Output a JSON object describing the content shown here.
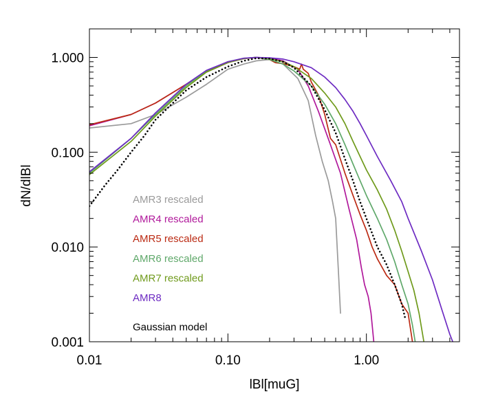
{
  "chart_data": {
    "type": "line",
    "title": "",
    "xlabel": "lBl[muG]",
    "ylabel": "dN/dlBl",
    "xscale": "log",
    "yscale": "log",
    "xlim": [
      0.01,
      4.7
    ],
    "ylim": [
      0.001,
      2.0
    ],
    "xticks": [
      {
        "value": 0.01,
        "label": "0.01"
      },
      {
        "value": 0.1,
        "label": "0.10"
      },
      {
        "value": 1.0,
        "label": "1.00"
      }
    ],
    "yticks": [
      {
        "value": 0.001,
        "label": "0.001"
      },
      {
        "value": 0.01,
        "label": "0.010"
      },
      {
        "value": 0.1,
        "label": "0.100"
      },
      {
        "value": 1.0,
        "label": "1.000"
      }
    ],
    "legend_position": "center-left",
    "series": [
      {
        "name": "AMR3 rescaled",
        "color": "#9a9a9a",
        "style": "solid",
        "points": [
          [
            0.01,
            0.18
          ],
          [
            0.02,
            0.2
          ],
          [
            0.03,
            0.25
          ],
          [
            0.05,
            0.38
          ],
          [
            0.07,
            0.52
          ],
          [
            0.1,
            0.75
          ],
          [
            0.13,
            0.85
          ],
          [
            0.16,
            0.92
          ],
          [
            0.2,
            0.95
          ],
          [
            0.25,
            0.85
          ],
          [
            0.32,
            0.6
          ],
          [
            0.38,
            0.35
          ],
          [
            0.43,
            0.15
          ],
          [
            0.48,
            0.08
          ],
          [
            0.53,
            0.05
          ],
          [
            0.57,
            0.03
          ],
          [
            0.6,
            0.02
          ],
          [
            0.63,
            0.005
          ],
          [
            0.65,
            0.002
          ]
        ]
      },
      {
        "name": "AMR4 rescaled",
        "color": "#b0189b",
        "style": "solid",
        "points": [
          [
            0.01,
            0.19
          ],
          [
            0.02,
            0.25
          ],
          [
            0.03,
            0.33
          ],
          [
            0.05,
            0.52
          ],
          [
            0.07,
            0.7
          ],
          [
            0.1,
            0.88
          ],
          [
            0.13,
            0.97
          ],
          [
            0.16,
            1.0
          ],
          [
            0.2,
            0.98
          ],
          [
            0.25,
            0.92
          ],
          [
            0.32,
            0.75
          ],
          [
            0.38,
            0.5
          ],
          [
            0.45,
            0.27
          ],
          [
            0.55,
            0.12
          ],
          [
            0.65,
            0.06
          ],
          [
            0.75,
            0.025
          ],
          [
            0.85,
            0.012
          ],
          [
            0.92,
            0.006
          ],
          [
            0.97,
            0.004
          ],
          [
            1.03,
            0.003
          ],
          [
            1.08,
            0.002
          ],
          [
            1.13,
            0.001
          ]
        ]
      },
      {
        "name": "AMR5 rescaled",
        "color": "#bb2a13",
        "style": "solid",
        "points": [
          [
            0.01,
            0.195
          ],
          [
            0.02,
            0.25
          ],
          [
            0.03,
            0.33
          ],
          [
            0.05,
            0.52
          ],
          [
            0.07,
            0.72
          ],
          [
            0.1,
            0.9
          ],
          [
            0.13,
            0.97
          ],
          [
            0.16,
            1.0
          ],
          [
            0.2,
            0.95
          ],
          [
            0.22,
            0.88
          ],
          [
            0.25,
            0.86
          ],
          [
            0.3,
            0.8
          ],
          [
            0.33,
            0.75
          ],
          [
            0.34,
            0.85
          ],
          [
            0.35,
            0.75
          ],
          [
            0.38,
            0.68
          ],
          [
            0.4,
            0.55
          ],
          [
            0.45,
            0.4
          ],
          [
            0.5,
            0.25
          ],
          [
            0.55,
            0.14
          ],
          [
            0.6,
            0.12
          ],
          [
            0.7,
            0.06
          ],
          [
            0.8,
            0.035
          ],
          [
            0.9,
            0.022
          ],
          [
            1.0,
            0.015
          ],
          [
            1.1,
            0.01
          ],
          [
            1.2,
            0.0075
          ],
          [
            1.4,
            0.005
          ],
          [
            1.6,
            0.004
          ],
          [
            1.8,
            0.0025
          ],
          [
            2.0,
            0.002
          ],
          [
            2.15,
            0.001
          ]
        ]
      },
      {
        "name": "AMR6 rescaled",
        "color": "#5fa86a",
        "style": "solid",
        "points": [
          [
            0.01,
            0.06
          ],
          [
            0.02,
            0.14
          ],
          [
            0.03,
            0.25
          ],
          [
            0.05,
            0.5
          ],
          [
            0.07,
            0.72
          ],
          [
            0.1,
            0.9
          ],
          [
            0.13,
            0.98
          ],
          [
            0.16,
            1.0
          ],
          [
            0.2,
            0.95
          ],
          [
            0.25,
            0.85
          ],
          [
            0.3,
            0.72
          ],
          [
            0.4,
            0.5
          ],
          [
            0.5,
            0.32
          ],
          [
            0.6,
            0.2
          ],
          [
            0.7,
            0.12
          ],
          [
            0.8,
            0.075
          ],
          [
            0.9,
            0.05
          ],
          [
            1.0,
            0.035
          ],
          [
            1.2,
            0.02
          ],
          [
            1.4,
            0.012
          ],
          [
            1.6,
            0.007
          ],
          [
            1.8,
            0.004
          ],
          [
            2.0,
            0.0025
          ],
          [
            2.15,
            0.0015
          ],
          [
            2.25,
            0.001
          ]
        ]
      },
      {
        "name": "AMR7 rescaled",
        "color": "#6f9a1b",
        "style": "solid",
        "points": [
          [
            0.01,
            0.058
          ],
          [
            0.02,
            0.13
          ],
          [
            0.03,
            0.24
          ],
          [
            0.05,
            0.48
          ],
          [
            0.07,
            0.7
          ],
          [
            0.1,
            0.88
          ],
          [
            0.13,
            0.97
          ],
          [
            0.16,
            1.0
          ],
          [
            0.2,
            0.97
          ],
          [
            0.25,
            0.9
          ],
          [
            0.3,
            0.8
          ],
          [
            0.4,
            0.6
          ],
          [
            0.5,
            0.42
          ],
          [
            0.6,
            0.3
          ],
          [
            0.7,
            0.2
          ],
          [
            0.8,
            0.13
          ],
          [
            0.9,
            0.09
          ],
          [
            1.0,
            0.065
          ],
          [
            1.2,
            0.04
          ],
          [
            1.4,
            0.025
          ],
          [
            1.6,
            0.015
          ],
          [
            1.8,
            0.009
          ],
          [
            2.0,
            0.0055
          ],
          [
            2.2,
            0.0035
          ],
          [
            2.4,
            0.002
          ],
          [
            2.6,
            0.001
          ]
        ]
      },
      {
        "name": "AMR8",
        "color": "#6d2bc2",
        "style": "solid",
        "points": [
          [
            0.01,
            0.062
          ],
          [
            0.02,
            0.14
          ],
          [
            0.03,
            0.26
          ],
          [
            0.05,
            0.52
          ],
          [
            0.07,
            0.73
          ],
          [
            0.1,
            0.9
          ],
          [
            0.13,
            0.98
          ],
          [
            0.16,
            1.0
          ],
          [
            0.2,
            0.99
          ],
          [
            0.25,
            0.96
          ],
          [
            0.3,
            0.9
          ],
          [
            0.4,
            0.78
          ],
          [
            0.5,
            0.62
          ],
          [
            0.6,
            0.48
          ],
          [
            0.7,
            0.36
          ],
          [
            0.8,
            0.27
          ],
          [
            0.9,
            0.2
          ],
          [
            1.0,
            0.15
          ],
          [
            1.2,
            0.09
          ],
          [
            1.5,
            0.05
          ],
          [
            1.8,
            0.03
          ],
          [
            2.0,
            0.02
          ],
          [
            2.5,
            0.009
          ],
          [
            3.0,
            0.0045
          ],
          [
            3.5,
            0.0022
          ],
          [
            4.0,
            0.0012
          ],
          [
            4.2,
            0.001
          ]
        ]
      },
      {
        "name": "Gaussian model",
        "color": "#000000",
        "style": "dotted",
        "points": [
          [
            0.01,
            0.027
          ],
          [
            0.013,
            0.045
          ],
          [
            0.016,
            0.065
          ],
          [
            0.02,
            0.1
          ],
          [
            0.025,
            0.15
          ],
          [
            0.03,
            0.22
          ],
          [
            0.04,
            0.33
          ],
          [
            0.05,
            0.45
          ],
          [
            0.07,
            0.62
          ],
          [
            0.1,
            0.8
          ],
          [
            0.13,
            0.92
          ],
          [
            0.16,
            0.98
          ],
          [
            0.2,
            0.97
          ],
          [
            0.25,
            0.9
          ],
          [
            0.3,
            0.78
          ],
          [
            0.4,
            0.5
          ],
          [
            0.5,
            0.28
          ],
          [
            0.6,
            0.16
          ],
          [
            0.7,
            0.085
          ],
          [
            0.8,
            0.05
          ],
          [
            0.9,
            0.03
          ],
          [
            1.0,
            0.02
          ],
          [
            1.2,
            0.01
          ],
          [
            1.4,
            0.0065
          ],
          [
            1.6,
            0.004
          ],
          [
            1.8,
            0.0025
          ],
          [
            1.9,
            0.0018
          ]
        ]
      }
    ]
  }
}
